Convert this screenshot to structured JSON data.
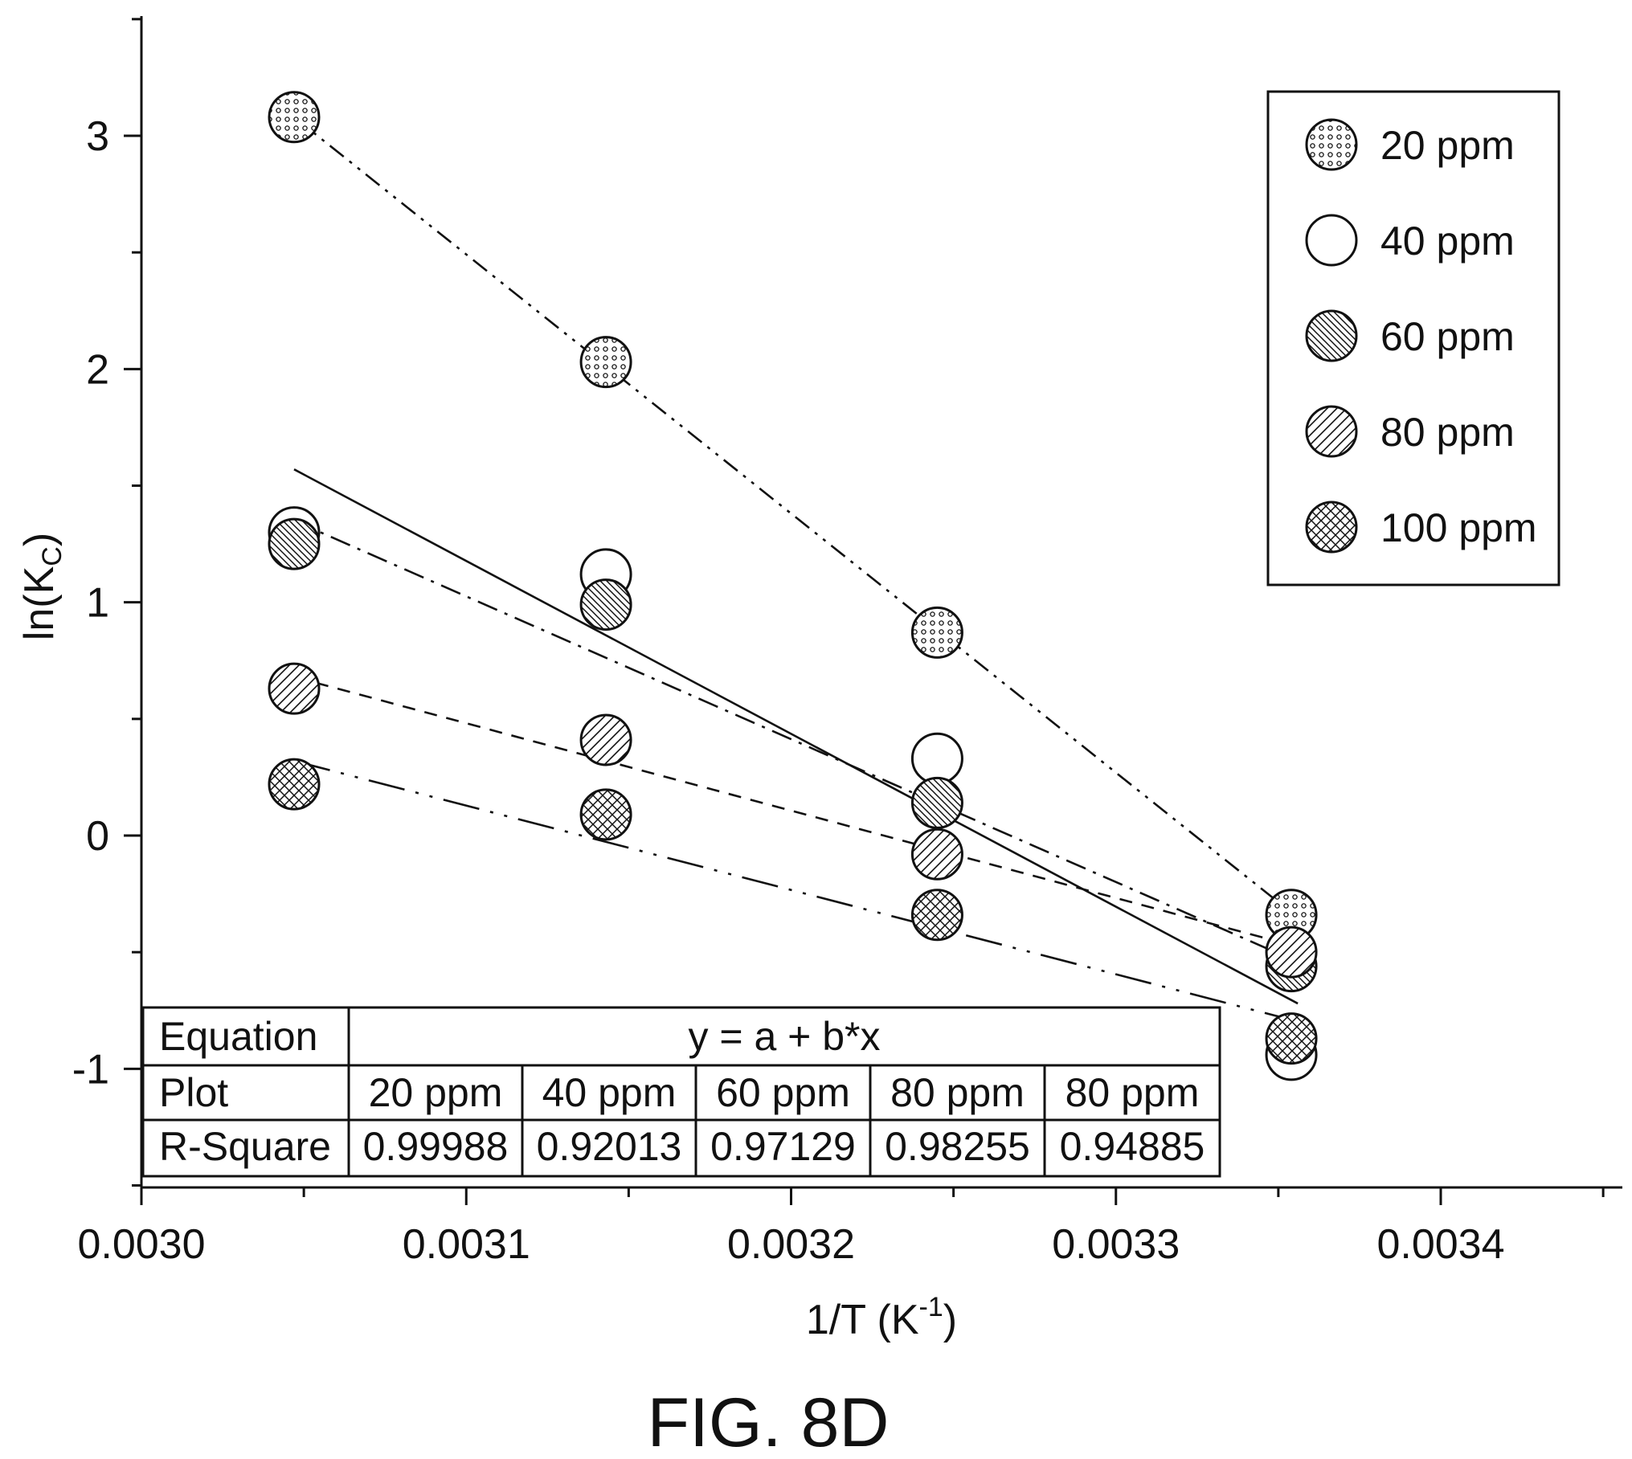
{
  "chart_data": {
    "type": "scatter",
    "ylabel": {
      "main": "ln(K",
      "sub": "C",
      "end": ")"
    },
    "xlabel": {
      "main": "1/T (K",
      "sup": "-1",
      "end": ")"
    },
    "xlim": [
      0.003,
      0.00345
    ],
    "ylim": [
      -1.5,
      3.5
    ],
    "xticks": [
      {
        "value": 0.003,
        "label": "0.0030"
      },
      {
        "value": 0.0031,
        "label": "0.0031"
      },
      {
        "value": 0.0032,
        "label": "0.0032"
      },
      {
        "value": 0.0033,
        "label": "0.0033"
      },
      {
        "value": 0.0034,
        "label": "0.0034"
      }
    ],
    "yticks": [
      {
        "value": -1,
        "label": "-1"
      },
      {
        "value": 0,
        "label": "0"
      },
      {
        "value": 1,
        "label": "1"
      },
      {
        "value": 2,
        "label": "2"
      },
      {
        "value": 3,
        "label": "3"
      }
    ],
    "legend_position": "top-right",
    "series": [
      {
        "name": "20 ppm",
        "pattern": "dots",
        "line": "dash-dot-dot",
        "x": [
          0.003047,
          0.003143,
          0.003245,
          0.003354
        ],
        "y": [
          3.08,
          2.03,
          0.87,
          -0.34
        ],
        "fit": {
          "x": [
            0.003047,
            0.003354
          ],
          "y": [
            3.08,
            -0.33
          ]
        }
      },
      {
        "name": "40 ppm",
        "pattern": "none",
        "line": "solid",
        "x": [
          0.003047,
          0.003143,
          0.003245,
          0.003354
        ],
        "y": [
          1.3,
          1.12,
          0.33,
          -0.94
        ],
        "fit": {
          "x": [
            0.003047,
            0.003356
          ],
          "y": [
            1.57,
            -0.72
          ]
        }
      },
      {
        "name": "60 ppm",
        "pattern": "back-diagonal",
        "line": "dash-dot",
        "x": [
          0.003047,
          0.003143,
          0.003245,
          0.003354
        ],
        "y": [
          1.25,
          0.99,
          0.14,
          -0.56
        ],
        "fit": {
          "x": [
            0.003047,
            0.003354
          ],
          "y": [
            1.35,
            -0.53
          ]
        }
      },
      {
        "name": "80 ppm",
        "pattern": "forward-diagonal",
        "line": "dash",
        "x": [
          0.003047,
          0.003143,
          0.003245,
          0.003354
        ],
        "y": [
          0.63,
          0.41,
          -0.08,
          -0.5
        ],
        "fit": {
          "x": [
            0.003047,
            0.003354
          ],
          "y": [
            0.68,
            -0.47
          ]
        }
      },
      {
        "name": "100 ppm",
        "pattern": "crosshatch",
        "line": "long-dash-dot-dot",
        "x": [
          0.003047,
          0.003143,
          0.003245,
          0.003354
        ],
        "y": [
          0.22,
          0.09,
          -0.34,
          -0.87
        ],
        "fit": {
          "x": [
            0.003047,
            0.003354
          ],
          "y": [
            0.32,
            -0.79
          ]
        }
      }
    ],
    "fit_table": {
      "row_equation_label": "Equation",
      "equation": "y = a + b*x",
      "row_plot_label": "Plot",
      "plots": [
        "20 ppm",
        "40 ppm",
        "60 ppm",
        "80 ppm",
        "80 ppm"
      ],
      "row_r2_label": "R-Square",
      "r_square": [
        "0.99988",
        "0.92013",
        "0.97129",
        "0.98255",
        "0.94885"
      ]
    }
  },
  "caption": "FIG. 8D",
  "colors": {
    "ink": "#111111",
    "background": "#ffffff"
  }
}
